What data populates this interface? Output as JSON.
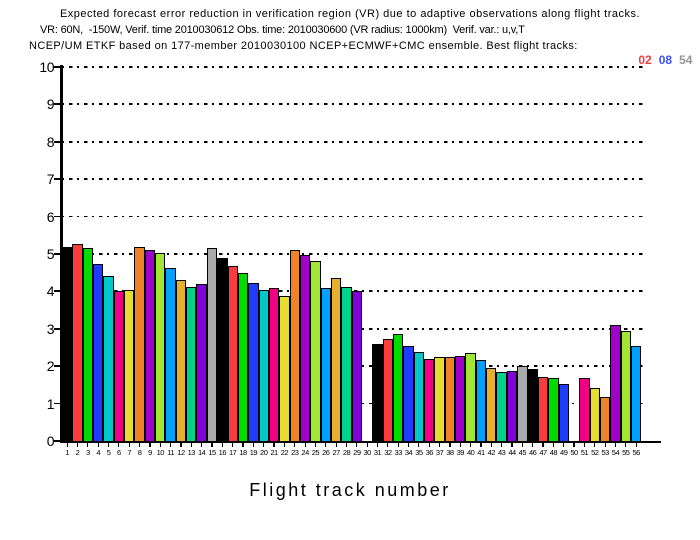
{
  "chart_data": {
    "type": "bar",
    "title_lines": [
      "Expected forecast error reduction in verification region (VR) due to adaptive observations along flight tracks.",
      "VR: 60N,  -150W, Verif. time 2010030612 Obs. time: 2010030600 (VR radius: 1000km)  Verif. var.: u,v,T",
      "NCEP/UM ETKF based on 177-member 2010030100 NCEP+ECMWF+CMC ensemble. Best flight tracks:"
    ],
    "best_tracks": [
      {
        "label": "02",
        "color": "#f03c3c"
      },
      {
        "label": "08",
        "color": "#3c50f0"
      },
      {
        "label": "54",
        "color": "#969696"
      }
    ],
    "xlabel": "Flight track number",
    "ylabel": "",
    "ylim": [
      0,
      10
    ],
    "yticks": [
      0,
      1,
      2,
      3,
      4,
      5,
      6,
      7,
      8,
      9,
      10
    ],
    "grid": "horizontal dash-dot gridlines at every integer",
    "legend": "none",
    "categories": [
      1,
      2,
      3,
      4,
      5,
      6,
      7,
      8,
      9,
      10,
      11,
      12,
      13,
      14,
      15,
      16,
      17,
      18,
      19,
      20,
      21,
      22,
      23,
      24,
      25,
      26,
      27,
      28,
      29,
      30,
      31,
      32,
      33,
      34,
      35,
      36,
      37,
      38,
      39,
      40,
      41,
      42,
      43,
      44,
      45,
      46,
      47,
      48,
      49,
      50,
      51,
      52,
      53,
      54,
      55,
      56
    ],
    "values": [
      5.2,
      5.28,
      5.15,
      4.72,
      4.4,
      4.0,
      4.05,
      5.18,
      5.12,
      5.02,
      4.62,
      4.3,
      4.13,
      4.2,
      5.15,
      4.9,
      4.68,
      4.48,
      4.22,
      4.05,
      4.08,
      3.87,
      5.12,
      4.97,
      4.8,
      4.08,
      4.35,
      4.13,
      4.0,
      null,
      2.6,
      2.72,
      2.86,
      2.53,
      2.37,
      2.19,
      2.24,
      2.24,
      2.27,
      2.35,
      2.16,
      1.95,
      1.84,
      1.87,
      2.0,
      1.92,
      1.71,
      1.68,
      1.52,
      null,
      1.68,
      1.41,
      1.17,
      3.09,
      2.93,
      2.53
    ],
    "missing_tracks": [
      30,
      50
    ],
    "bar_colors_cycle": [
      "#000000",
      "#fa3c3c",
      "#00dc00",
      "#1e3cff",
      "#00c8c8",
      "#f00082",
      "#e6dc32",
      "#f08228",
      "#a000c8",
      "#a0e632",
      "#00a0ff",
      "#e6af2d",
      "#00d28c",
      "#8200dc",
      "#aaaaaa"
    ],
    "bar_outline_color": "#000000"
  }
}
